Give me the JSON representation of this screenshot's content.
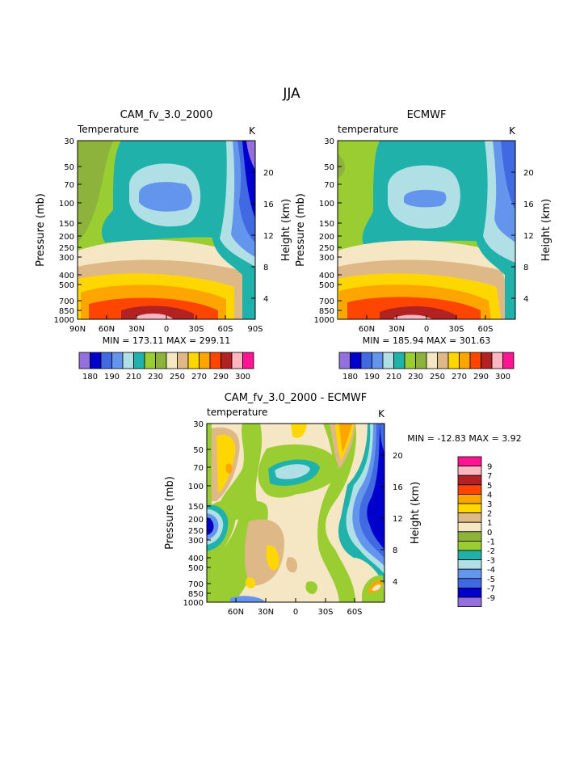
{
  "title": "JJA",
  "chart_data": [
    {
      "type": "contour",
      "title": "CAM_fv_3.0_2000",
      "subtitle_left": "Temperature",
      "subtitle_right": "K",
      "ylabel": "Pressure (mb)",
      "ylabel_right": "Height (km)",
      "x_ticks": [
        "90N",
        "60N",
        "30N",
        "0",
        "30S",
        "60S",
        "90S"
      ],
      "y_ticks": [
        "30",
        "50",
        "70",
        "100",
        "150",
        "200",
        "250",
        "300",
        "400",
        "500",
        "700",
        "850",
        "1000"
      ],
      "y_right_ticks": [
        "20",
        "16",
        "12",
        "8",
        "4"
      ],
      "stats": "MIN = 173.11   MAX = 299.11",
      "colorbar_labels": [
        "180",
        "190",
        "210",
        "230",
        "250",
        "270",
        "290",
        "300"
      ],
      "colors": [
        "#9370DB",
        "#0000CD",
        "#4169E1",
        "#6495ED",
        "#B0E0E6",
        "#20B2AA",
        "#9ACD32",
        "#8DB33C",
        "#F5E6C4",
        "#DEB887",
        "#FFD700",
        "#FFA500",
        "#FF4500",
        "#B22222",
        "#FFB6C1",
        "#FF1493"
      ]
    },
    {
      "type": "contour",
      "title": "ECMWF",
      "subtitle_left": "temperature",
      "subtitle_right": "K",
      "ylabel": "Pressure (mb)",
      "ylabel_right": "Height (km)",
      "x_ticks": [
        "60N",
        "30N",
        "0",
        "30S",
        "60S"
      ],
      "y_ticks": [
        "30",
        "50",
        "70",
        "100",
        "150",
        "200",
        "250",
        "300",
        "400",
        "500",
        "700",
        "850",
        "1000"
      ],
      "y_right_ticks": [
        "20",
        "16",
        "12",
        "8",
        "4"
      ],
      "stats": "MIN = 185.94   MAX = 301.63",
      "colorbar_labels": [
        "180",
        "190",
        "210",
        "230",
        "250",
        "270",
        "290",
        "300"
      ]
    },
    {
      "type": "contour",
      "title": "CAM_fv_3.0_2000 - ECMWF",
      "subtitle_left": "temperature",
      "subtitle_right": "K",
      "ylabel": "Pressure (mb)",
      "ylabel_right": "Height (km)",
      "x_ticks": [
        "60N",
        "30N",
        "0",
        "30S",
        "60S"
      ],
      "y_ticks": [
        "30",
        "50",
        "70",
        "100",
        "150",
        "200",
        "250",
        "300",
        "400",
        "500",
        "700",
        "850",
        "1000"
      ],
      "y_right_ticks": [
        "20",
        "16",
        "12",
        "8",
        "4"
      ],
      "stats": "MIN = -12.83   MAX =    3.92",
      "legend_labels": [
        "9",
        "7",
        "5",
        "4",
        "3",
        "2",
        "1",
        "0",
        "-1",
        "-2",
        "-3",
        "-4",
        "-5",
        "-7",
        "-9"
      ],
      "legend_colors": [
        "#FF1493",
        "#FFB6C1",
        "#B22222",
        "#FF4500",
        "#FFA500",
        "#FFD700",
        "#DEB887",
        "#F5E6C4",
        "#8DB33C",
        "#9ACD32",
        "#20B2AA",
        "#B0E0E6",
        "#6495ED",
        "#4169E1",
        "#0000CD",
        "#9370DB"
      ]
    }
  ]
}
